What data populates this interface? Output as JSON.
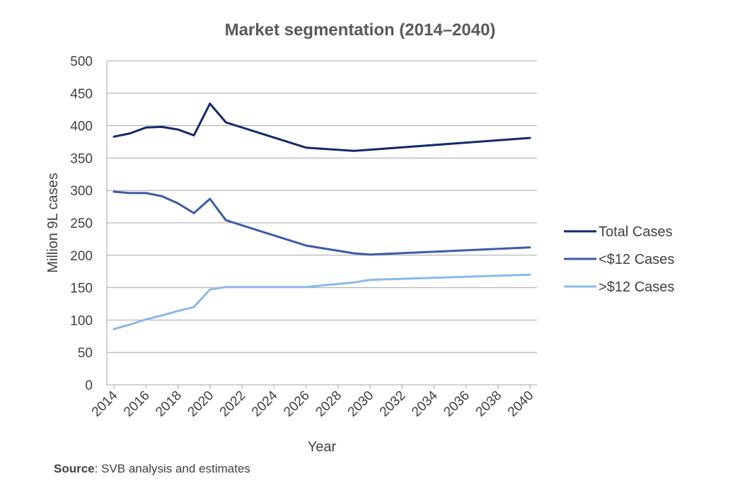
{
  "chart_data": {
    "type": "line",
    "title": "Market segmentation (2014–2040)",
    "xlabel": "Year",
    "ylabel": "Million 9L cases",
    "xlim": [
      2014,
      2040
    ],
    "ylim": [
      0,
      500
    ],
    "yticks": [
      0,
      50,
      100,
      150,
      200,
      250,
      300,
      350,
      400,
      450,
      500
    ],
    "xticks": [
      2014,
      2016,
      2018,
      2020,
      2022,
      2024,
      2026,
      2028,
      2030,
      2032,
      2034,
      2036,
      2038,
      2040
    ],
    "grid": true,
    "legend_position": "right",
    "series": [
      {
        "name": "Total Cases",
        "color": "#13296b",
        "points": [
          [
            2014,
            383
          ],
          [
            2015,
            388
          ],
          [
            2016,
            397
          ],
          [
            2017,
            398
          ],
          [
            2018,
            394
          ],
          [
            2019,
            385
          ],
          [
            2020,
            434
          ],
          [
            2021,
            405
          ],
          [
            2026,
            366
          ],
          [
            2029,
            361
          ],
          [
            2040,
            381
          ]
        ]
      },
      {
        "name": "<$12 Cases",
        "color": "#3c5ba7",
        "points": [
          [
            2014,
            298
          ],
          [
            2015,
            296
          ],
          [
            2016,
            296
          ],
          [
            2017,
            291
          ],
          [
            2018,
            280
          ],
          [
            2019,
            265
          ],
          [
            2020,
            287
          ],
          [
            2021,
            254
          ],
          [
            2026,
            215
          ],
          [
            2029,
            203
          ],
          [
            2030,
            201
          ],
          [
            2040,
            212
          ]
        ]
      },
      {
        "name": ">$12 Cases",
        "color": "#8cb8ea",
        "points": [
          [
            2014,
            86
          ],
          [
            2015,
            93
          ],
          [
            2016,
            101
          ],
          [
            2017,
            107
          ],
          [
            2018,
            114
          ],
          [
            2019,
            120
          ],
          [
            2020,
            147
          ],
          [
            2021,
            151
          ],
          [
            2026,
            151
          ],
          [
            2029,
            158
          ],
          [
            2030,
            162
          ],
          [
            2040,
            170
          ]
        ]
      }
    ]
  },
  "source": {
    "label": "Source",
    "text": ": SVB analysis and estimates"
  }
}
